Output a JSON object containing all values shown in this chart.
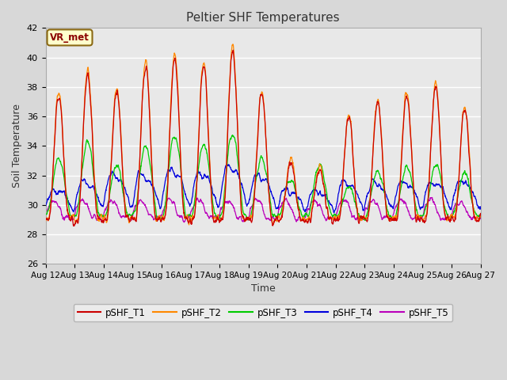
{
  "title": "Peltier SHF Temperatures",
  "xlabel": "Time",
  "ylabel": "Soil Temperature",
  "ylim": [
    26,
    42
  ],
  "yticks": [
    26,
    28,
    30,
    32,
    34,
    36,
    38,
    40,
    42
  ],
  "xtick_labels": [
    "Aug 12",
    "Aug 13",
    "Aug 14",
    "Aug 15",
    "Aug 16",
    "Aug 17",
    "Aug 18",
    "Aug 19",
    "Aug 20",
    "Aug 21",
    "Aug 22",
    "Aug 23",
    "Aug 24",
    "Aug 25",
    "Aug 26",
    "Aug 27"
  ],
  "annotation_text": "VR_met",
  "colors": {
    "pSHF_T1": "#cc0000",
    "pSHF_T2": "#ff8800",
    "pSHF_T3": "#00cc00",
    "pSHF_T4": "#0000dd",
    "pSHF_T5": "#bb00bb"
  },
  "background_color": "#e8e8e8",
  "fig_background": "#d8d8d8",
  "grid_color": "#ffffff",
  "num_points": 2000
}
